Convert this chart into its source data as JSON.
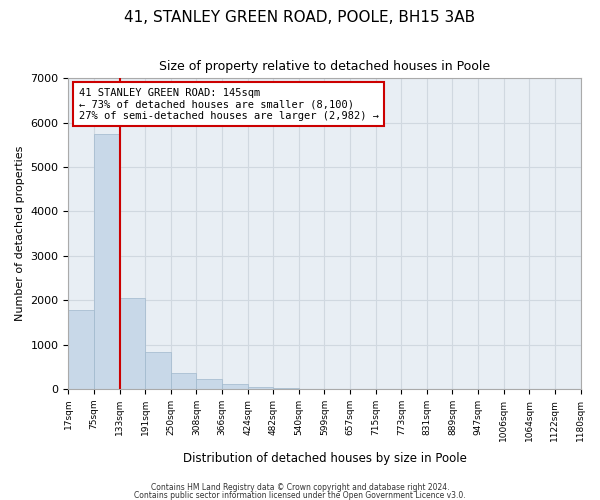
{
  "title": "41, STANLEY GREEN ROAD, POOLE, BH15 3AB",
  "subtitle": "Size of property relative to detached houses in Poole",
  "xlabel": "Distribution of detached houses by size in Poole",
  "ylabel": "Number of detached properties",
  "bar_color": "#c8d8e8",
  "bar_edge_color": "#a0b8cc",
  "grid_color": "#d0d8e0",
  "background_color": "#ffffff",
  "bin_labels": [
    "17sqm",
    "75sqm",
    "133sqm",
    "191sqm",
    "250sqm",
    "308sqm",
    "366sqm",
    "424sqm",
    "482sqm",
    "540sqm",
    "599sqm",
    "657sqm",
    "715sqm",
    "773sqm",
    "831sqm",
    "889sqm",
    "947sqm",
    "1006sqm",
    "1064sqm",
    "1122sqm",
    "1180sqm"
  ],
  "bar_values": [
    1780,
    5750,
    2060,
    830,
    370,
    235,
    110,
    55,
    20,
    5,
    0,
    0,
    0,
    0,
    0,
    0,
    0,
    0,
    0,
    0
  ],
  "ylim": [
    0,
    7000
  ],
  "yticks": [
    0,
    1000,
    2000,
    3000,
    4000,
    5000,
    6000,
    7000
  ],
  "property_line_x": 2,
  "property_label": "41 STANLEY GREEN ROAD: 145sqm",
  "annotation_line1": "← 73% of detached houses are smaller (8,100)",
  "annotation_line2": "27% of semi-detached houses are larger (2,982) →",
  "annotation_box_color": "#ffffff",
  "annotation_box_edge": "#cc0000",
  "vline_color": "#cc0000",
  "footer1": "Contains HM Land Registry data © Crown copyright and database right 2024.",
  "footer2": "Contains public sector information licensed under the Open Government Licence v3.0."
}
